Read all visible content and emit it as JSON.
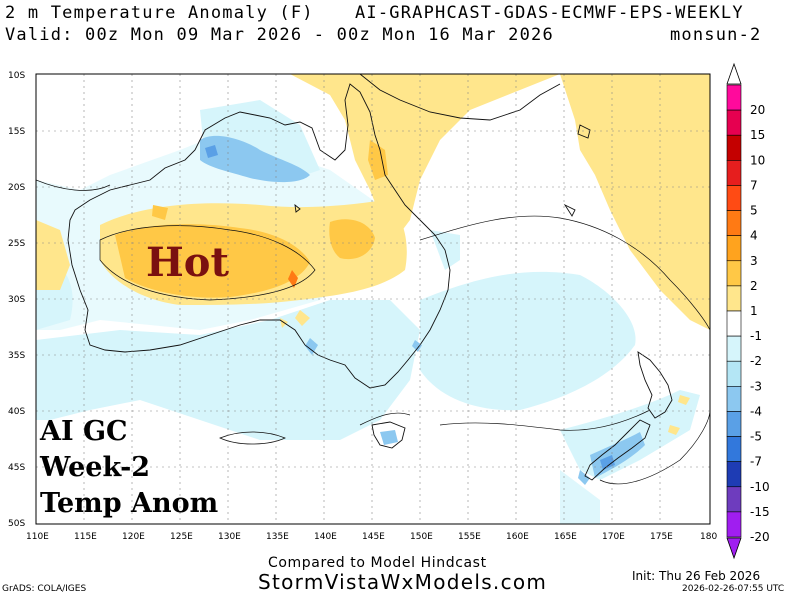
{
  "header": {
    "title_left": "2 m Temperature Anomaly (F)",
    "title_right": "AI-GRAPHCAST-GDAS-ECMWF-EPS-WEEKLY",
    "valid_line": "Valid: 00z Mon 09 Mar 2026 - 00z Mon 16 Mar 2026",
    "run_name": "monsun-2"
  },
  "map": {
    "lat_labels": [
      "10S",
      "15S",
      "20S",
      "25S",
      "30S",
      "35S",
      "40S",
      "45S",
      "50S"
    ],
    "lon_labels": [
      "110E",
      "115E",
      "120E",
      "125E",
      "130E",
      "135E",
      "140E",
      "145E",
      "150E",
      "155E",
      "160E",
      "165E",
      "170E",
      "175E",
      "180"
    ],
    "hot_label": "Hot",
    "overlay_lines": [
      "AI GC",
      "Week-2",
      "Temp Anom"
    ]
  },
  "colorbar": {
    "labels": [
      "20",
      "15",
      "10",
      "7",
      "5",
      "4",
      "3",
      "2",
      "1",
      "-1",
      "-2",
      "-3",
      "-4",
      "-5",
      "-7",
      "-10",
      "-15",
      "-20"
    ],
    "colors": [
      "#ff0a9c",
      "#e60050",
      "#c40000",
      "#e61e1e",
      "#ff4b14",
      "#ff7a14",
      "#ffa31e",
      "#ffc846",
      "#ffe68c",
      "#ffffff",
      "#d6f5fb",
      "#b4e6f5",
      "#8cc8f0",
      "#5aa0e6",
      "#3278dc",
      "#1e3cb4",
      "#6e3cbe",
      "#a01ef0"
    ]
  },
  "footer": {
    "compared": "Compared to Model Hindcast",
    "website": "StormVistaWxModels.com",
    "grads": "GrADS: COLA/IGES",
    "init": "Init: Thu 26 Feb 2026",
    "timestamp": "2026-02-26-07:55 UTC"
  }
}
